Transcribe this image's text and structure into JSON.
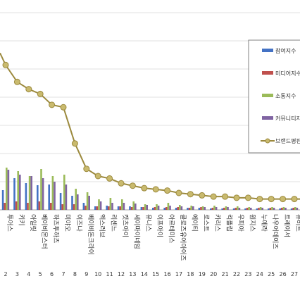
{
  "chart_data": {
    "type": "bar",
    "categories": [
      "투어스",
      "키키",
      "아일릿",
      "베이비몬스터",
      "하츠투하츠",
      "미야오",
      "이즈나",
      "베이비돈크라이",
      "엑스러브",
      "리센느",
      "캣츠아이",
      "세이마이네임",
      "유니스",
      "이프아이",
      "아르테미스",
      "클로즈유어아이즈",
      "에이티",
      "로스트",
      "카리스",
      "킥플립",
      "우피아",
      "원지스",
      "누에라",
      "나우어데이즈",
      "트레이서",
      "뉴비트"
    ],
    "category_numbers": [
      "2",
      "3",
      "4",
      "5",
      "6",
      "7",
      "8",
      "9",
      "10",
      "11",
      "12",
      "13",
      "14",
      "15",
      "16",
      "17",
      "18",
      "19",
      "20",
      "21",
      "22",
      "23",
      "24",
      "25",
      "26",
      "27"
    ],
    "series": [
      {
        "name": "참여지수",
        "color": "#4472C4",
        "values": [
          28,
          45,
          38,
          35,
          36,
          24,
          20,
          10,
          5,
          6,
          5,
          5,
          4,
          3,
          3,
          3,
          3,
          3,
          2,
          2,
          2,
          2,
          2,
          2,
          2,
          2
        ]
      },
      {
        "name": "미디어지수",
        "color": "#C0504D",
        "values": [
          10,
          12,
          10,
          12,
          10,
          8,
          8,
          6,
          5,
          5,
          5,
          4,
          4,
          4,
          4,
          4,
          3,
          4,
          3,
          3,
          3,
          3,
          3,
          3,
          3,
          3
        ]
      },
      {
        "name": "소통지수",
        "color": "#9BBB59",
        "values": [
          60,
          55,
          48,
          58,
          48,
          50,
          30,
          25,
          15,
          17,
          15,
          12,
          8,
          8,
          10,
          7,
          6,
          5,
          6,
          5,
          5,
          4,
          4,
          4,
          4,
          4
        ]
      },
      {
        "name": "커뮤니티지수",
        "color": "#8064A2",
        "values": [
          57,
          50,
          48,
          45,
          40,
          36,
          22,
          20,
          12,
          10,
          10,
          9,
          7,
          6,
          6,
          5,
          5,
          4,
          4,
          4,
          3,
          3,
          3,
          3,
          3,
          3
        ]
      }
    ],
    "line_series": {
      "name": "브랜드평판지수",
      "color": "#9C8A3E",
      "values": [
        250,
        236,
        230,
        226,
        217,
        215,
        185,
        164,
        158,
        156,
        152,
        150,
        148,
        147,
        146,
        144,
        143,
        142,
        141,
        141,
        140,
        140,
        139,
        139,
        139,
        139
      ]
    },
    "legend": [
      "참여지수",
      "미디어지수",
      "소통지수",
      "커뮤니티지수",
      "브랜드평판지수"
    ],
    "legend_position": "right",
    "bar_ylim": [
      0,
      140
    ],
    "line_ylim": [
      130,
      270
    ]
  }
}
